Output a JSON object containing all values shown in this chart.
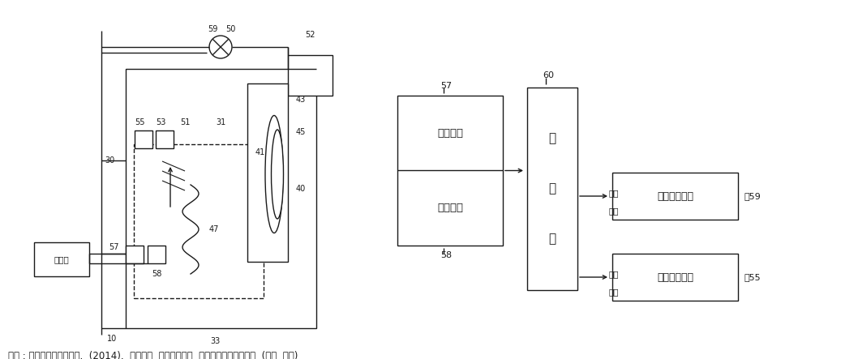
{
  "caption": "출처 : 한국항공우주연구원.  (2014).  액체질소  직분사방식의  극저온열환경시험장치  (국내  특허)",
  "bg_color": "#ffffff",
  "line_color": "#1a1a1a",
  "sensor_text_top": "온도센서",
  "sensor_text_bot": "압력센서",
  "control_text_lines": [
    "제",
    "어",
    "부"
  ],
  "valve1_text": "유량조절밸브",
  "valve1_label": "～59",
  "valve2_text": "압력조절밸브",
  "valve2_label": "～55",
  "ctrl_box_label": "제어부",
  "label_60": "60",
  "label_57_top": "57",
  "label_58_bot": "58",
  "label_59_valve": "59",
  "label_50": "50",
  "label_52": "52",
  "label_55": "55",
  "label_53": "53",
  "label_51": "51",
  "label_31": "31",
  "label_43": "43",
  "label_45": "45",
  "label_40": "40",
  "label_41": "41",
  "label_47": "47",
  "label_30": "30",
  "label_57_bot": "57",
  "label_58_bottom": "58",
  "label_10": "10",
  "label_33": "33",
  "signal1": "제어\n신호",
  "signal2": "제어\n신호"
}
